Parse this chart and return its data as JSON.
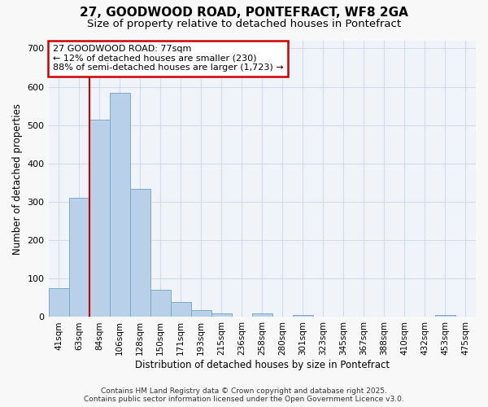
{
  "title_line1": "27, GOODWOOD ROAD, PONTEFRACT, WF8 2GA",
  "title_line2": "Size of property relative to detached houses in Pontefract",
  "xlabel": "Distribution of detached houses by size in Pontefract",
  "ylabel": "Number of detached properties",
  "bar_labels": [
    "41sqm",
    "63sqm",
    "84sqm",
    "106sqm",
    "128sqm",
    "150sqm",
    "171sqm",
    "193sqm",
    "215sqm",
    "236sqm",
    "258sqm",
    "280sqm",
    "301sqm",
    "323sqm",
    "345sqm",
    "367sqm",
    "388sqm",
    "410sqm",
    "432sqm",
    "453sqm",
    "475sqm"
  ],
  "bar_heights": [
    75,
    310,
    515,
    585,
    335,
    70,
    40,
    18,
    10,
    0,
    10,
    0,
    5,
    0,
    0,
    0,
    0,
    0,
    0,
    5,
    0
  ],
  "bar_color": "#b8d0e8",
  "bar_edge_color": "#7aaac8",
  "red_line_color": "#cc0000",
  "red_line_x": 2.0,
  "annotation_title": "27 GOODWOOD ROAD: 77sqm",
  "annotation_line2": "← 12% of detached houses are smaller (230)",
  "annotation_line3": "88% of semi-detached houses are larger (1,723) →",
  "annotation_box_facecolor": "#ffffff",
  "annotation_box_edgecolor": "#cc0000",
  "grid_color": "#d0dce8",
  "plot_bg_color": "#f0f4f8",
  "fig_bg_color": "#f8f8f8",
  "ylim": [
    0,
    720
  ],
  "yticks": [
    0,
    100,
    200,
    300,
    400,
    500,
    600,
    700
  ],
  "footer_line1": "Contains HM Land Registry data © Crown copyright and database right 2025.",
  "footer_line2": "Contains public sector information licensed under the Open Government Licence v3.0."
}
